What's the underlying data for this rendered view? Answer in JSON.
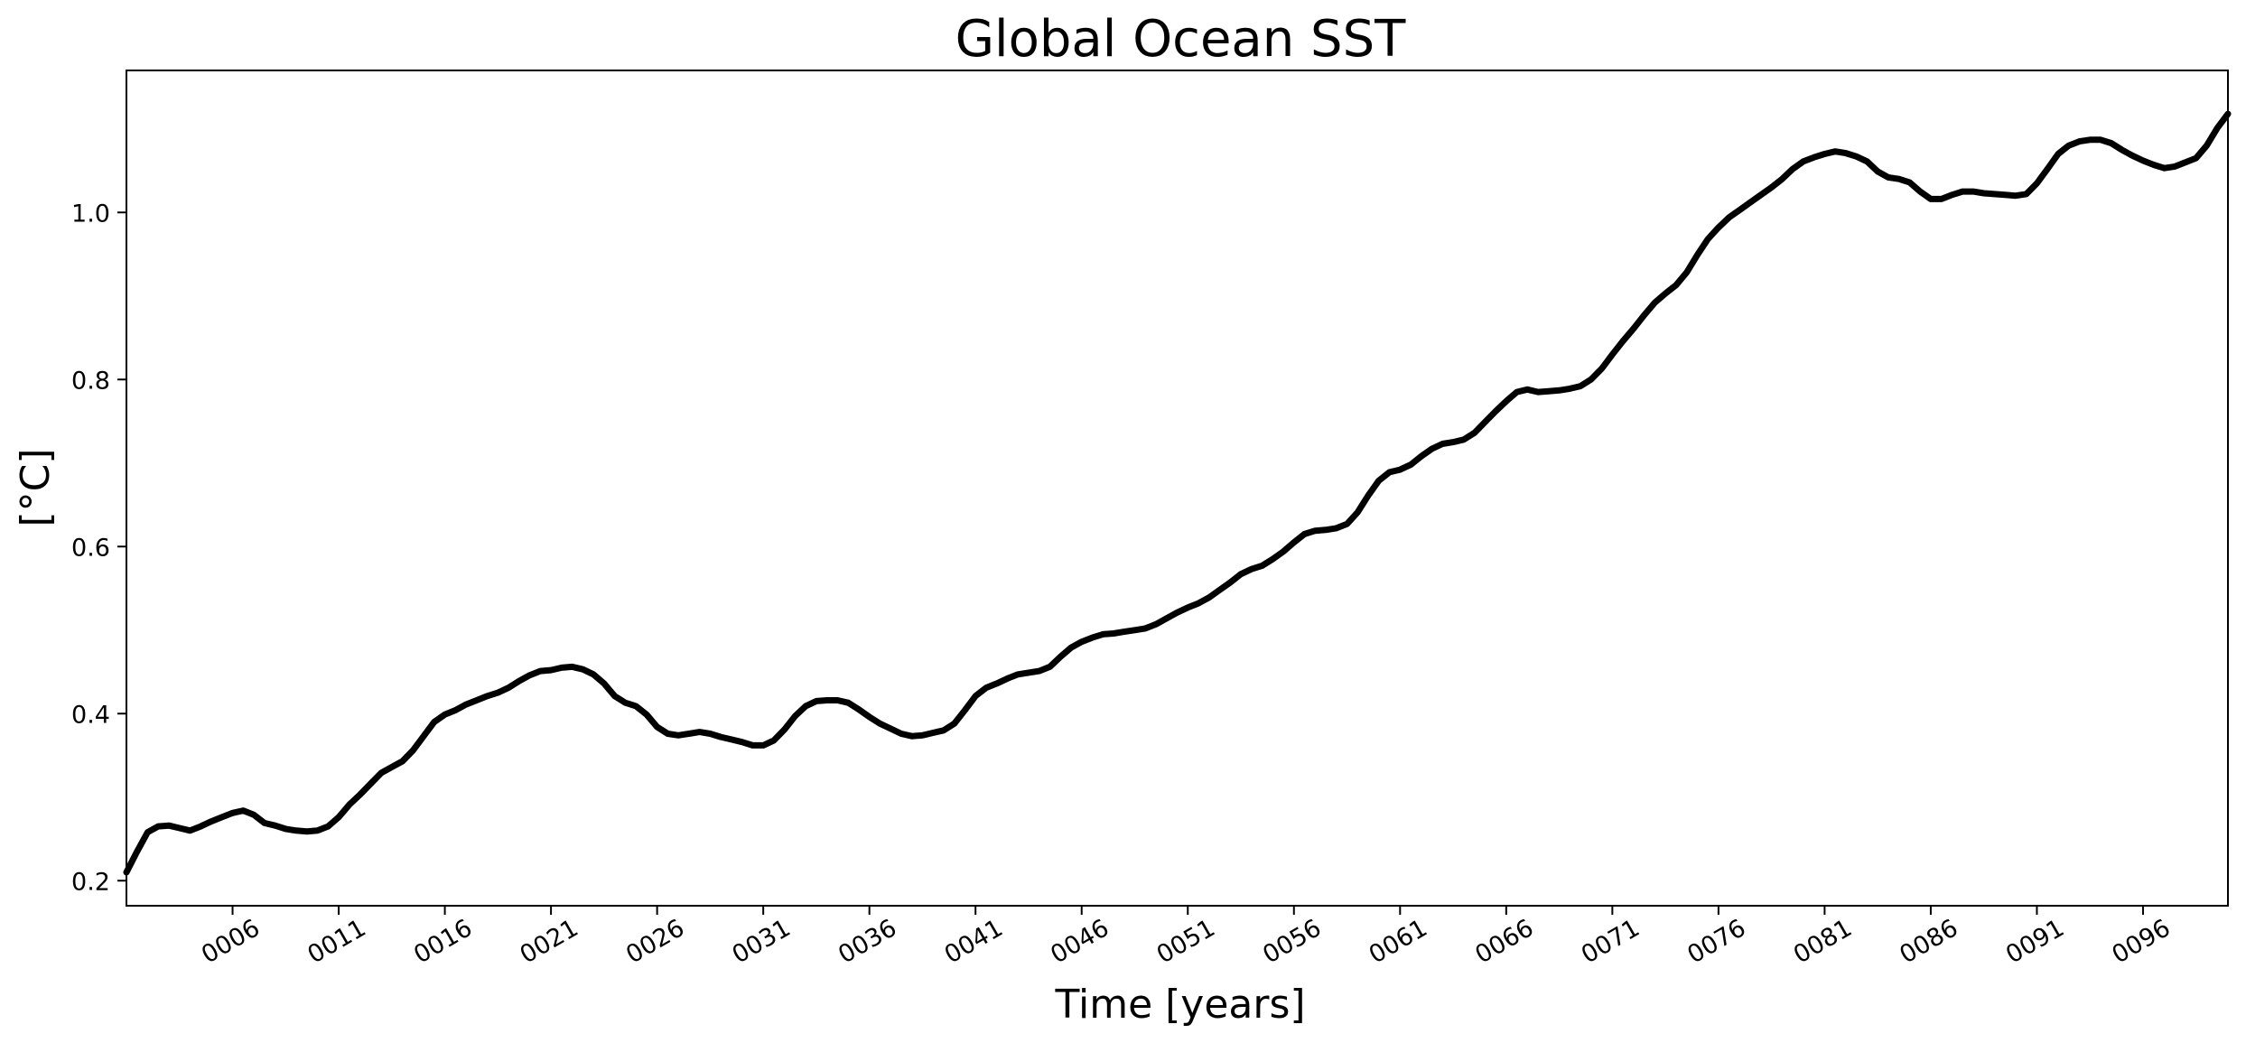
{
  "chart_data": {
    "type": "line",
    "title": "Global Ocean SST",
    "xlabel": "Time [years]",
    "ylabel": "[°C]",
    "xlim": [
      1.0,
      100.0
    ],
    "ylim": [
      0.17,
      1.17
    ],
    "grid": false,
    "x_ticks": [
      6,
      11,
      16,
      21,
      26,
      31,
      36,
      41,
      46,
      51,
      56,
      61,
      66,
      71,
      76,
      81,
      86,
      91,
      96
    ],
    "x_tick_labels": [
      "0006",
      "0011",
      "0016",
      "0021",
      "0026",
      "0031",
      "0036",
      "0041",
      "0046",
      "0051",
      "0056",
      "0061",
      "0066",
      "0071",
      "0076",
      "0081",
      "0086",
      "0091",
      "0096"
    ],
    "y_ticks": [
      0.2,
      0.4,
      0.6,
      0.8,
      1.0
    ],
    "y_tick_labels": [
      "0.2",
      "0.4",
      "0.6",
      "0.8",
      "1.0"
    ],
    "series": [
      {
        "color": "#000000",
        "x": [
          1.0,
          1.5,
          2.0,
          2.5,
          3.0,
          3.5,
          4.0,
          4.5,
          5.0,
          5.5,
          6.0,
          6.5,
          7.0,
          7.5,
          8.0,
          8.5,
          9.0,
          9.5,
          10.0,
          10.5,
          11.0,
          11.5,
          12.0,
          12.5,
          13.0,
          13.5,
          14.0,
          14.5,
          15.0,
          15.5,
          16.0,
          16.5,
          17.0,
          17.5,
          18.0,
          18.5,
          19.0,
          19.5,
          20.0,
          20.5,
          21.0,
          21.5,
          22.0,
          22.5,
          23.0,
          23.5,
          24.0,
          24.5,
          25.0,
          25.5,
          26.0,
          26.5,
          27.0,
          27.5,
          28.0,
          28.5,
          29.0,
          29.5,
          30.0,
          30.5,
          31.0,
          31.5,
          32.0,
          32.5,
          33.0,
          33.5,
          34.0,
          34.5,
          35.0,
          35.5,
          36.0,
          36.5,
          37.0,
          37.5,
          38.0,
          38.5,
          39.0,
          39.5,
          40.0,
          40.5,
          41.0,
          41.5,
          42.0,
          42.5,
          43.0,
          43.5,
          44.0,
          44.5,
          45.0,
          45.5,
          46.0,
          46.5,
          47.0,
          47.5,
          48.0,
          48.5,
          49.0,
          49.5,
          50.0,
          50.5,
          51.0,
          51.5,
          52.0,
          52.5,
          53.0,
          53.5,
          54.0,
          54.5,
          55.0,
          55.5,
          56.0,
          56.5,
          57.0,
          57.5,
          58.0,
          58.5,
          59.0,
          59.5,
          60.0,
          60.5,
          61.0,
          61.5,
          62.0,
          62.5,
          63.0,
          63.5,
          64.0,
          64.5,
          65.0,
          65.5,
          66.0,
          66.5,
          67.0,
          67.5,
          68.0,
          68.5,
          69.0,
          69.5,
          70.0,
          70.5,
          71.0,
          71.5,
          72.0,
          72.5,
          73.0,
          73.5,
          74.0,
          74.5,
          75.0,
          75.5,
          76.0,
          76.5,
          77.0,
          77.5,
          78.0,
          78.5,
          79.0,
          79.5,
          80.0,
          80.5,
          81.0,
          81.5,
          82.0,
          82.5,
          83.0,
          83.5,
          84.0,
          84.5,
          85.0,
          85.5,
          86.0,
          86.5,
          87.0,
          87.5,
          88.0,
          88.5,
          89.0,
          89.5,
          90.0,
          90.5,
          91.0,
          91.5,
          92.0,
          92.5,
          93.0,
          93.5,
          94.0,
          94.5,
          95.0,
          95.5,
          96.0,
          96.5,
          97.0,
          97.5,
          98.0,
          98.5,
          99.0,
          99.5,
          100.0
        ],
        "y": [
          0.21,
          0.235,
          0.258,
          0.265,
          0.266,
          0.263,
          0.26,
          0.265,
          0.271,
          0.276,
          0.281,
          0.284,
          0.279,
          0.269,
          0.266,
          0.262,
          0.26,
          0.259,
          0.26,
          0.265,
          0.276,
          0.291,
          0.303,
          0.316,
          0.329,
          0.336,
          0.343,
          0.356,
          0.373,
          0.39,
          0.399,
          0.404,
          0.411,
          0.416,
          0.421,
          0.425,
          0.431,
          0.439,
          0.446,
          0.451,
          0.452,
          0.455,
          0.456,
          0.453,
          0.447,
          0.436,
          0.421,
          0.413,
          0.409,
          0.399,
          0.384,
          0.376,
          0.374,
          0.376,
          0.378,
          0.376,
          0.372,
          0.369,
          0.366,
          0.362,
          0.362,
          0.368,
          0.381,
          0.397,
          0.409,
          0.415,
          0.416,
          0.416,
          0.413,
          0.405,
          0.396,
          0.388,
          0.382,
          0.376,
          0.373,
          0.374,
          0.377,
          0.38,
          0.388,
          0.404,
          0.421,
          0.431,
          0.436,
          0.442,
          0.447,
          0.449,
          0.451,
          0.456,
          0.468,
          0.479,
          0.486,
          0.491,
          0.495,
          0.496,
          0.498,
          0.5,
          0.502,
          0.507,
          0.514,
          0.521,
          0.527,
          0.532,
          0.539,
          0.548,
          0.557,
          0.567,
          0.573,
          0.577,
          0.585,
          0.594,
          0.605,
          0.615,
          0.619,
          0.62,
          0.622,
          0.627,
          0.641,
          0.661,
          0.679,
          0.689,
          0.692,
          0.698,
          0.708,
          0.717,
          0.723,
          0.725,
          0.728,
          0.736,
          0.749,
          0.762,
          0.774,
          0.785,
          0.788,
          0.785,
          0.786,
          0.787,
          0.789,
          0.792,
          0.8,
          0.813,
          0.83,
          0.846,
          0.861,
          0.877,
          0.892,
          0.903,
          0.913,
          0.928,
          0.949,
          0.968,
          0.982,
          0.994,
          1.003,
          1.012,
          1.021,
          1.03,
          1.04,
          1.052,
          1.061,
          1.066,
          1.07,
          1.073,
          1.071,
          1.067,
          1.061,
          1.049,
          1.042,
          1.04,
          1.036,
          1.025,
          1.016,
          1.016,
          1.021,
          1.025,
          1.025,
          1.023,
          1.022,
          1.021,
          1.02,
          1.022,
          1.035,
          1.052,
          1.07,
          1.08,
          1.085,
          1.087,
          1.087,
          1.083,
          1.075,
          1.068,
          1.062,
          1.057,
          1.053,
          1.055,
          1.06,
          1.065,
          1.08,
          1.101,
          1.118
        ]
      }
    ]
  }
}
